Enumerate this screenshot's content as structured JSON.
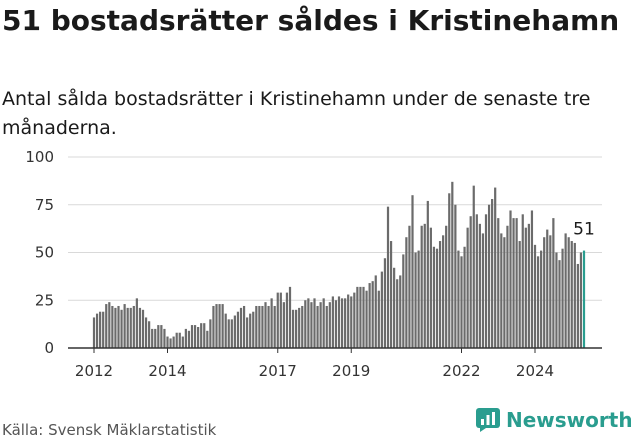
{
  "title": "51 bostadsrätter såldes i Kristinehamn",
  "subtitle": "Antal sålda bostadsrätter i Kristinehamn under de senaste tre månaderna.",
  "source": "Källa: Svensk Mäklarstatistik",
  "brand": "Newsworthy",
  "colors": {
    "bar": "#6b6b6b",
    "highlight": "#2a9d8f",
    "grid": "#d9d9d9",
    "brand": "#2a9d8f"
  },
  "chart_data": {
    "type": "bar",
    "title": "51 bostadsrätter såldes i Kristinehamn",
    "xlabel": "",
    "ylabel": "",
    "ylim": [
      0,
      100
    ],
    "yticks": [
      0,
      25,
      50,
      75,
      100
    ],
    "xticks": [
      "2012",
      "2014",
      "2017",
      "2019",
      "2022",
      "2024"
    ],
    "x_start_year": 2012,
    "end_label": "51",
    "values": [
      16,
      18,
      19,
      19,
      23,
      24,
      22,
      21,
      22,
      20,
      23,
      21,
      21,
      22,
      26,
      21,
      20,
      16,
      14,
      10,
      10,
      12,
      12,
      10,
      6,
      5,
      6,
      8,
      8,
      6,
      10,
      9,
      12,
      12,
      11,
      13,
      13,
      9,
      15,
      22,
      23,
      23,
      23,
      18,
      15,
      15,
      17,
      19,
      21,
      22,
      16,
      18,
      19,
      22,
      22,
      22,
      24,
      22,
      26,
      22,
      29,
      29,
      24,
      29,
      32,
      20,
      20,
      21,
      22,
      25,
      26,
      24,
      26,
      22,
      24,
      26,
      22,
      24,
      27,
      25,
      27,
      26,
      26,
      28,
      27,
      29,
      32,
      32,
      32,
      30,
      34,
      35,
      38,
      30,
      40,
      47,
      74,
      56,
      42,
      36,
      38,
      49,
      58,
      64,
      80,
      50,
      51,
      64,
      65,
      77,
      63,
      53,
      52,
      56,
      59,
      64,
      81,
      87,
      75,
      51,
      48,
      53,
      63,
      69,
      85,
      70,
      65,
      60,
      70,
      75,
      78,
      84,
      68,
      60,
      58,
      64,
      72,
      68,
      68,
      56,
      70,
      63,
      65,
      72,
      54,
      48,
      51,
      58,
      62,
      59,
      68,
      50,
      46,
      52,
      60,
      58,
      56,
      55,
      44,
      50,
      51
    ]
  }
}
